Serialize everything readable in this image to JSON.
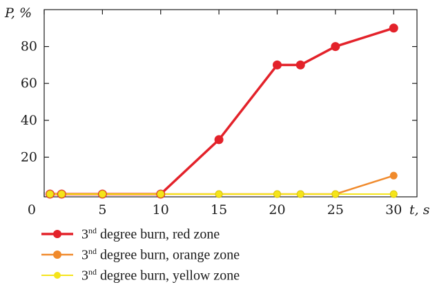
{
  "chart_data": {
    "type": "line",
    "ylabel": "P, %",
    "xlabel": "t, s",
    "x_ticks": [
      0,
      5,
      10,
      15,
      20,
      25,
      30
    ],
    "y_ticks": [
      20,
      40,
      60,
      80
    ],
    "xlim": [
      0,
      32
    ],
    "ylim": [
      -1.5,
      100
    ],
    "grid": false,
    "legend_placement": "bottom-left",
    "series": [
      {
        "name": "3nd degree burn, red zone",
        "color": "#e3222a",
        "x": [
          0.5,
          1.5,
          5,
          10,
          15,
          20,
          22,
          25,
          30
        ],
        "y": [
          0,
          0,
          0,
          0,
          29.5,
          70,
          70,
          80,
          90
        ]
      },
      {
        "name": "3nd degree burn, orange zone",
        "color": "#f08a2c",
        "x": [
          0.5,
          1.5,
          5,
          10,
          15,
          20,
          22,
          25,
          30
        ],
        "y": [
          0,
          0,
          0,
          0,
          0,
          0,
          0,
          0,
          10
        ]
      },
      {
        "name": "3nd degree burn, yellow zone",
        "color": "#f5e41a",
        "x": [
          0.5,
          1.5,
          5,
          10,
          15,
          20,
          22,
          25,
          30
        ],
        "y": [
          0,
          0,
          0,
          0,
          0,
          0,
          0,
          0,
          0
        ]
      }
    ]
  },
  "legend": {
    "items": [
      {
        "prefix": "3",
        "sup": "nd",
        "suffix": " degree burn, red zone"
      },
      {
        "prefix": "3",
        "sup": "nd",
        "suffix": " degree burn, orange zone"
      },
      {
        "prefix": "3",
        "sup": "nd",
        "suffix": " degree burn, yellow zone"
      }
    ]
  }
}
